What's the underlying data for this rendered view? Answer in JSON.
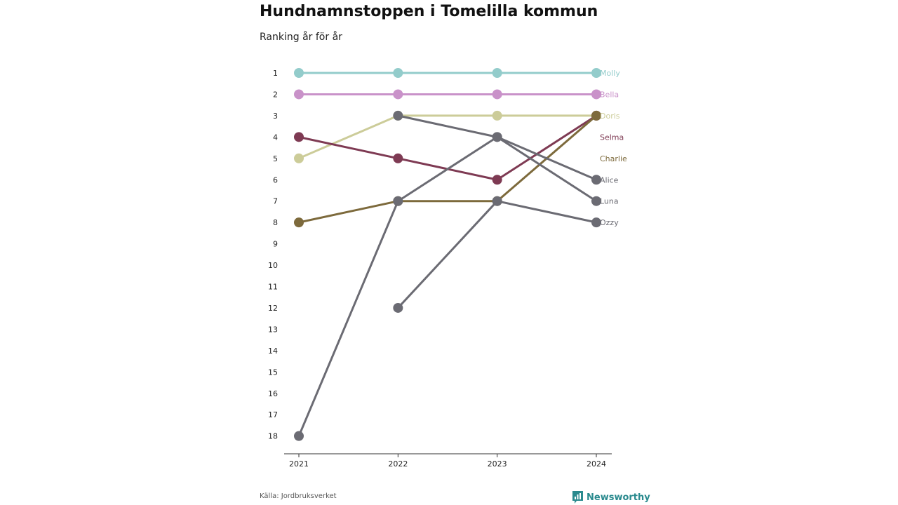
{
  "header": {
    "title": "Hundnamnstoppen i Tomelilla kommun",
    "subtitle": "Ranking år för år"
  },
  "footer": {
    "source": "Källa: Jordbruksverket",
    "brand": "Newsworthy",
    "brand_icon": "newsworthy-logo-icon"
  },
  "chart_data": {
    "type": "line",
    "x": [
      "2021",
      "2022",
      "2023",
      "2024"
    ],
    "y_ticks": [
      1,
      2,
      3,
      4,
      5,
      6,
      7,
      8,
      9,
      10,
      11,
      12,
      13,
      14,
      15,
      16,
      17,
      18
    ],
    "ylim": [
      1,
      18
    ],
    "y_inverted": true,
    "xlabel": "",
    "ylabel": "",
    "grid": false,
    "series": [
      {
        "name": "Molly",
        "color": "#93cccb",
        "values": [
          1,
          1,
          1,
          1
        ]
      },
      {
        "name": "Bella",
        "color": "#c992c9",
        "values": [
          2,
          2,
          2,
          2
        ]
      },
      {
        "name": "Doris",
        "color": "#cccc99",
        "values": [
          5,
          3,
          3,
          3
        ]
      },
      {
        "name": "Selma",
        "color": "#7e3a53",
        "values": [
          4,
          5,
          6,
          3
        ]
      },
      {
        "name": "Charlie",
        "color": "#7d6a3c",
        "values": [
          8,
          7,
          7,
          3
        ]
      },
      {
        "name": "Alice",
        "color": "#6b6b73",
        "values": [
          null,
          3,
          4,
          6
        ]
      },
      {
        "name": "Luna",
        "color": "#6b6b73",
        "values": [
          18,
          7,
          4,
          7
        ]
      },
      {
        "name": "Ozzy",
        "color": "#6b6b73",
        "values": [
          null,
          12,
          7,
          8
        ]
      }
    ]
  }
}
